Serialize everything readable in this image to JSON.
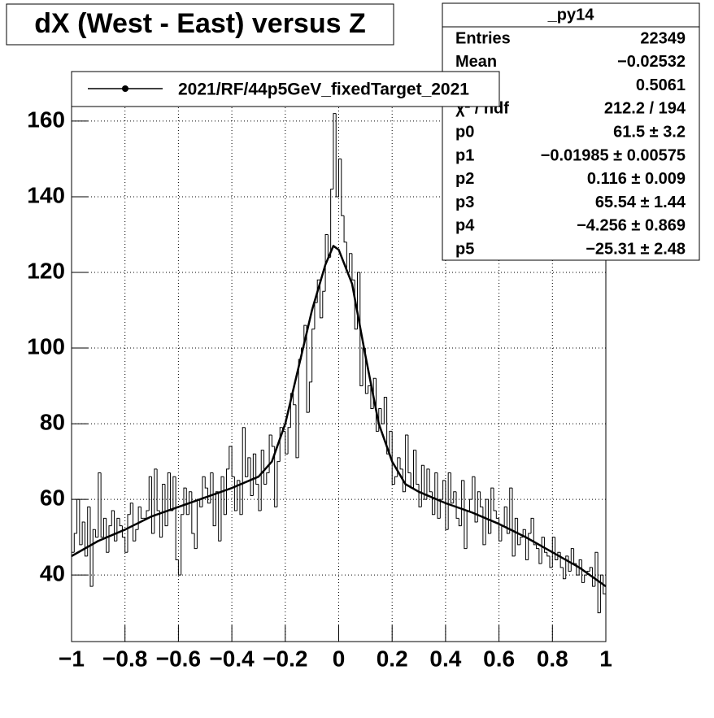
{
  "chart_data": {
    "type": "histogram",
    "title": "dX (West - East) versus Z",
    "legend": "2021/RF/44p5GeV_fixedTarget_2021",
    "stats": {
      "title": "_py14",
      "rows": [
        {
          "label": "Entries",
          "value": "22349"
        },
        {
          "label": "Mean",
          "value": "−0.02532"
        },
        {
          "label": null,
          "value": "0.5061"
        },
        {
          "label": "χ² / ndf",
          "value": "212.2 / 194"
        },
        {
          "label": "p0",
          "value": "61.5 ± 3.2"
        },
        {
          "label": "p1",
          "value": "−0.01985 ± 0.00575"
        },
        {
          "label": "p2",
          "value": "0.116 ± 0.009"
        },
        {
          "label": "p3",
          "value": "65.54 ± 1.44"
        },
        {
          "label": "p4",
          "value": "−4.256 ± 0.869"
        },
        {
          "label": "p5",
          "value": "−25.31 ± 2.48"
        }
      ]
    },
    "color": "#000000",
    "bins": [
      -1,
      -0.99,
      -0.98,
      -0.97,
      -0.96,
      -0.95,
      -0.94,
      -0.93,
      -0.92,
      -0.91,
      -0.9,
      -0.89,
      -0.88,
      -0.87,
      -0.86,
      -0.85,
      -0.84,
      -0.83,
      -0.82,
      -0.81,
      -0.8,
      -0.79,
      -0.78,
      -0.77,
      -0.76,
      -0.75,
      -0.74,
      -0.73,
      -0.72,
      -0.71,
      -0.7,
      -0.69,
      -0.68,
      -0.67,
      -0.66,
      -0.65,
      -0.64,
      -0.63,
      -0.62,
      -0.61,
      -0.6,
      -0.59,
      -0.58,
      -0.57,
      -0.56,
      -0.55,
      -0.54,
      -0.53,
      -0.52,
      -0.51,
      -0.5,
      -0.49,
      -0.48,
      -0.47,
      -0.46,
      -0.45,
      -0.44,
      -0.43,
      -0.42,
      -0.41,
      -0.4,
      -0.39,
      -0.38,
      -0.37,
      -0.36,
      -0.35,
      -0.34,
      -0.33,
      -0.32,
      -0.31,
      -0.3,
      -0.29,
      -0.28,
      -0.27,
      -0.26,
      -0.25,
      -0.24,
      -0.23,
      -0.22,
      -0.21,
      -0.2,
      -0.19,
      -0.18,
      -0.17,
      -0.16,
      -0.15,
      -0.14,
      -0.13,
      -0.12,
      -0.11,
      -0.1,
      -0.09,
      -0.08,
      -0.07,
      -0.06,
      -0.05,
      -0.04,
      -0.03,
      -0.02,
      -0.01,
      0,
      0.01,
      0.02,
      0.03,
      0.04,
      0.05,
      0.06,
      0.07,
      0.08,
      0.09,
      0.1,
      0.11,
      0.12,
      0.13,
      0.14,
      0.15,
      0.16,
      0.17,
      0.18,
      0.19,
      0.2,
      0.21,
      0.22,
      0.23,
      0.24,
      0.25,
      0.26,
      0.27,
      0.28,
      0.29,
      0.3,
      0.31,
      0.32,
      0.33,
      0.34,
      0.35,
      0.36,
      0.37,
      0.38,
      0.39,
      0.4,
      0.41,
      0.42,
      0.43,
      0.44,
      0.45,
      0.46,
      0.47,
      0.48,
      0.49,
      0.5,
      0.51,
      0.52,
      0.53,
      0.54,
      0.55,
      0.56,
      0.57,
      0.58,
      0.59,
      0.6,
      0.61,
      0.62,
      0.63,
      0.64,
      0.65,
      0.66,
      0.67,
      0.68,
      0.69,
      0.7,
      0.71,
      0.72,
      0.73,
      0.74,
      0.75,
      0.76,
      0.77,
      0.78,
      0.79,
      0.8,
      0.81,
      0.82,
      0.83,
      0.84,
      0.85,
      0.86,
      0.87,
      0.88,
      0.89,
      0.9,
      0.91,
      0.92,
      0.93,
      0.94,
      0.95,
      0.96,
      0.97,
      0.98,
      0.99,
      1
    ],
    "values": [
      46,
      51,
      60,
      48,
      54,
      45,
      58,
      37,
      52,
      50,
      67,
      50,
      55,
      46,
      53,
      57,
      49,
      55,
      53,
      50,
      46,
      56,
      59,
      49,
      52,
      58,
      55,
      55,
      57,
      66,
      51,
      68,
      57,
      50,
      64,
      53,
      67,
      57,
      66,
      44,
      40,
      56,
      63,
      56,
      62,
      51,
      47,
      60,
      58,
      66,
      63,
      59,
      67,
      53,
      62,
      49,
      66,
      56,
      68,
      74,
      66,
      57,
      65,
      56,
      79,
      66,
      71,
      61,
      72,
      64,
      57,
      73,
      64,
      67,
      77,
      74,
      58,
      70,
      79,
      78,
      72,
      79,
      88,
      85,
      71,
      97,
      100,
      106,
      83,
      91,
      105,
      112,
      118,
      108,
      115,
      130,
      124,
      142,
      162,
      140,
      150,
      135,
      128,
      120,
      125,
      118,
      105,
      120,
      90,
      100,
      88,
      90,
      84,
      92,
      78,
      84,
      80,
      87,
      72,
      78,
      64,
      66,
      71,
      68,
      62,
      77,
      67,
      63,
      73,
      64,
      58,
      69,
      60,
      68,
      62,
      56,
      67,
      55,
      60,
      65,
      52,
      67,
      59,
      62,
      55,
      53,
      65,
      47,
      57,
      60,
      66,
      54,
      62,
      58,
      48,
      60,
      51,
      63,
      57,
      55,
      49,
      53,
      58,
      51,
      63,
      45,
      55,
      48,
      50,
      52,
      44,
      51,
      55,
      48,
      47,
      43,
      50,
      46,
      45,
      42,
      50,
      44,
      46,
      42,
      39,
      45,
      41,
      47,
      43,
      40,
      44,
      38,
      40,
      41,
      42,
      37,
      46,
      30,
      40,
      35
    ],
    "fit": {
      "x": [
        -1,
        -0.9,
        -0.8,
        -0.7,
        -0.6,
        -0.5,
        -0.4,
        -0.3,
        -0.25,
        -0.2,
        -0.15,
        -0.1,
        -0.05,
        -0.02,
        0,
        0.05,
        0.1,
        0.15,
        0.2,
        0.25,
        0.3,
        0.4,
        0.5,
        0.6,
        0.7,
        0.8,
        0.9,
        1
      ],
      "values": [
        45,
        49,
        52,
        55.5,
        58,
        60.5,
        63,
        66,
        70,
        80,
        95,
        110,
        122,
        127,
        126,
        117,
        98,
        80,
        70,
        64,
        62,
        59,
        56.5,
        53.5,
        50,
        46,
        42,
        37
      ]
    },
    "xlim": [
      -1,
      1
    ],
    "ylim": [
      22.4,
      173.1
    ],
    "xticks": [
      {
        "value": -1,
        "label": "−1"
      },
      {
        "value": -0.8,
        "label": "−0.8"
      },
      {
        "value": -0.6,
        "label": "−0.6"
      },
      {
        "value": -0.4,
        "label": "−0.4"
      },
      {
        "value": -0.2,
        "label": "−0.2"
      },
      0,
      0.2,
      0.4,
      0.6,
      0.8,
      1
    ],
    "yticks": [
      40,
      60,
      80,
      100,
      120,
      140,
      160
    ],
    "grid": true
  }
}
